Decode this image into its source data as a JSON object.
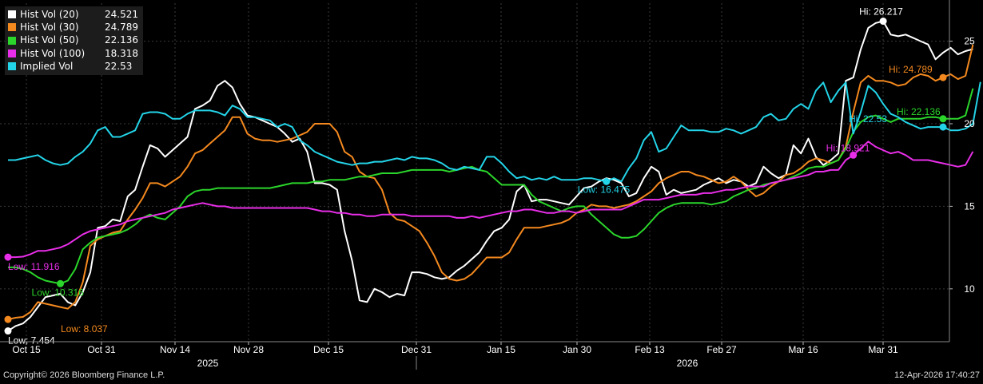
{
  "footer": {
    "copyright": "Copyright© 2026 Bloomberg Finance L.P.",
    "timestamp": "12-Apr-2026 17:40:27"
  },
  "chart_data": {
    "type": "line",
    "x_ticks": [
      "Oct 15",
      "Oct 31",
      "Nov 14",
      "Nov 28",
      "Dec 15",
      "Dec 31",
      "Jan 15",
      "Jan 30",
      "Feb 13",
      "Feb 27",
      "Mar 16",
      "Mar 31"
    ],
    "year_labels": [
      "2025",
      "2026"
    ],
    "y_ticks": [
      10,
      15,
      20,
      25
    ],
    "ylim": [
      6.8,
      27.3
    ],
    "n_points": 126,
    "grid": true,
    "legend_position": "top-left",
    "series": [
      {
        "name": "Hist Vol (20)",
        "last": "24.521",
        "color": "#ffffff",
        "values": [
          7.45,
          7.75,
          7.9,
          8.3,
          8.9,
          9.5,
          9.6,
          9.7,
          9.2,
          9.0,
          9.8,
          11.0,
          13.7,
          13.8,
          14.2,
          14.1,
          15.6,
          16.0,
          17.4,
          18.7,
          18.5,
          18.0,
          18.4,
          18.8,
          19.2,
          20.9,
          21.1,
          21.4,
          22.3,
          22.6,
          22.2,
          21.2,
          20.5,
          20.4,
          20.2,
          20.0,
          19.8,
          19.4,
          18.9,
          19.1,
          18.3,
          16.4,
          16.4,
          16.3,
          16.0,
          13.5,
          11.7,
          9.3,
          9.2,
          10.0,
          9.8,
          9.5,
          9.7,
          9.6,
          11.0,
          11.0,
          10.9,
          10.7,
          10.6,
          10.7,
          11.1,
          11.4,
          11.8,
          12.2,
          12.9,
          13.5,
          13.7,
          14.2,
          15.9,
          16.3,
          15.3,
          15.4,
          15.4,
          15.3,
          15.2,
          15.1,
          15.6,
          16.1,
          16.2,
          16.5,
          16.7,
          16.6,
          16.4,
          15.6,
          15.8,
          16.7,
          17.4,
          17.1,
          15.7,
          16.0,
          15.8,
          15.9,
          16.0,
          16.3,
          16.5,
          16.7,
          16.4,
          16.6,
          16.5,
          16.2,
          16.4,
          17.4,
          17.0,
          16.7,
          16.9,
          18.7,
          18.2,
          19.1,
          18.0,
          17.5,
          17.8,
          18.2,
          22.6,
          22.8,
          24.5,
          25.8,
          26.1,
          26.21,
          25.4,
          25.3,
          25.4,
          25.2,
          25.0,
          24.8,
          23.9,
          24.3,
          24.6,
          24.2,
          24.4,
          24.521
        ]
      },
      {
        "name": "Hist Vol (30)",
        "last": "24.789",
        "color": "#f4891f",
        "values": [
          8.15,
          8.25,
          8.3,
          8.6,
          9.2,
          9.1,
          9.0,
          8.9,
          8.8,
          9.2,
          10.4,
          12.6,
          13.0,
          13.2,
          13.4,
          13.5,
          14.2,
          14.8,
          15.5,
          16.4,
          16.4,
          16.2,
          16.5,
          16.8,
          17.4,
          18.2,
          18.4,
          18.8,
          19.2,
          19.6,
          20.4,
          20.4,
          19.4,
          19.1,
          19.0,
          19.0,
          18.9,
          19.0,
          19.1,
          19.3,
          19.5,
          20.0,
          20.0,
          20.0,
          19.5,
          18.3,
          18.0,
          17.1,
          16.8,
          16.7,
          16.0,
          14.6,
          14.2,
          14.1,
          13.8,
          13.5,
          12.8,
          12.0,
          11.0,
          10.6,
          10.5,
          10.6,
          10.9,
          11.4,
          11.9,
          11.9,
          11.9,
          12.2,
          13.0,
          13.7,
          13.7,
          13.7,
          13.8,
          13.9,
          14.0,
          14.2,
          14.6,
          14.8,
          15.1,
          15.0,
          15.0,
          14.9,
          15.0,
          15.1,
          15.3,
          15.6,
          15.9,
          16.4,
          16.7,
          16.9,
          17.1,
          17.1,
          16.9,
          16.8,
          16.6,
          16.4,
          16.5,
          16.8,
          16.5,
          16.0,
          15.6,
          15.8,
          16.2,
          16.5,
          16.9,
          17.0,
          17.3,
          17.7,
          17.9,
          17.8,
          17.6,
          17.8,
          18.6,
          20.7,
          22.5,
          22.9,
          22.6,
          22.6,
          22.5,
          22.3,
          22.4,
          22.8,
          23.0,
          22.9,
          22.6,
          22.8,
          23.0,
          22.7,
          22.9,
          24.789
        ]
      },
      {
        "name": "Hist Vol (50)",
        "last": "22.136",
        "color": "#2bd52b",
        "values": [
          11.3,
          11.3,
          11.2,
          11.0,
          10.7,
          10.5,
          10.4,
          10.316,
          10.5,
          11.2,
          12.4,
          12.8,
          13.1,
          13.2,
          13.3,
          13.4,
          13.6,
          13.9,
          14.3,
          14.5,
          14.3,
          14.2,
          14.6,
          15.0,
          15.6,
          15.9,
          16.0,
          16.0,
          16.1,
          16.1,
          16.1,
          16.1,
          16.1,
          16.1,
          16.1,
          16.1,
          16.2,
          16.3,
          16.4,
          16.4,
          16.4,
          16.5,
          16.5,
          16.6,
          16.6,
          16.6,
          16.7,
          16.8,
          16.8,
          16.9,
          17.0,
          17.0,
          17.0,
          17.1,
          17.2,
          17.2,
          17.2,
          17.2,
          17.2,
          17.1,
          17.2,
          17.3,
          17.4,
          17.2,
          17.1,
          16.7,
          16.3,
          16.3,
          16.3,
          16.3,
          15.7,
          15.3,
          15.1,
          14.9,
          14.7,
          14.9,
          15.0,
          15.0,
          14.5,
          14.1,
          13.7,
          13.3,
          13.1,
          13.1,
          13.2,
          13.6,
          14.1,
          14.6,
          14.9,
          15.1,
          15.2,
          15.2,
          15.2,
          15.2,
          15.1,
          15.2,
          15.3,
          15.6,
          15.8,
          16.0,
          16.1,
          16.3,
          16.4,
          16.5,
          16.6,
          16.8,
          17.0,
          17.3,
          17.4,
          17.4,
          17.6,
          17.8,
          18.5,
          19.5,
          20.1,
          20.4,
          20.5,
          20.3,
          20.1,
          20.3,
          20.3,
          20.3,
          20.3,
          20.4,
          20.4,
          20.3,
          20.3,
          20.3,
          20.5,
          22.136
        ]
      },
      {
        "name": "Hist Vol (100)",
        "last": "18.318",
        "color": "#e82ee8",
        "values": [
          11.92,
          11.92,
          11.95,
          12.1,
          12.3,
          12.3,
          12.4,
          12.5,
          12.7,
          13.0,
          13.3,
          13.5,
          13.6,
          13.7,
          13.8,
          13.9,
          14.1,
          14.2,
          14.3,
          14.4,
          14.5,
          14.6,
          14.8,
          14.9,
          15.0,
          15.1,
          15.2,
          15.1,
          15.0,
          15.0,
          14.9,
          14.9,
          14.9,
          14.9,
          14.9,
          14.9,
          14.9,
          14.9,
          14.9,
          14.9,
          14.9,
          14.8,
          14.7,
          14.7,
          14.6,
          14.6,
          14.5,
          14.5,
          14.4,
          14.4,
          14.5,
          14.5,
          14.5,
          14.5,
          14.4,
          14.4,
          14.4,
          14.4,
          14.4,
          14.4,
          14.3,
          14.3,
          14.4,
          14.3,
          14.4,
          14.5,
          14.6,
          14.7,
          14.7,
          14.8,
          14.8,
          14.7,
          14.6,
          14.6,
          14.7,
          14.7,
          14.6,
          14.7,
          14.8,
          14.8,
          14.8,
          14.8,
          14.8,
          15.0,
          15.2,
          15.4,
          15.4,
          15.4,
          15.5,
          15.6,
          15.7,
          15.7,
          15.7,
          15.8,
          15.8,
          15.9,
          16.0,
          16.0,
          16.1,
          16.2,
          16.2,
          16.2,
          16.4,
          16.5,
          16.6,
          16.7,
          16.8,
          16.9,
          17.1,
          17.1,
          17.2,
          17.2,
          17.8,
          18.1,
          18.5,
          18.921,
          18.6,
          18.4,
          18.2,
          18.3,
          18.1,
          17.8,
          17.8,
          17.8,
          17.7,
          17.6,
          17.5,
          17.4,
          17.5,
          18.318
        ]
      },
      {
        "name": "Implied Vol",
        "last": "22.53",
        "color": "#23d4e8",
        "values": [
          17.8,
          17.8,
          17.9,
          18.0,
          18.1,
          17.8,
          17.6,
          17.5,
          17.6,
          18.0,
          18.3,
          18.8,
          19.6,
          19.8,
          19.2,
          19.2,
          19.4,
          19.6,
          20.6,
          20.7,
          20.7,
          20.6,
          20.3,
          20.3,
          20.6,
          20.8,
          20.8,
          20.8,
          20.7,
          20.5,
          21.1,
          20.9,
          20.4,
          20.4,
          20.3,
          20.2,
          19.8,
          20.0,
          19.8,
          19.0,
          18.7,
          18.3,
          18.1,
          17.9,
          17.7,
          17.6,
          17.5,
          17.6,
          17.6,
          17.7,
          17.7,
          17.8,
          17.9,
          17.8,
          18.0,
          17.9,
          17.9,
          17.8,
          17.6,
          17.3,
          17.2,
          17.4,
          17.3,
          17.2,
          18.0,
          18.0,
          17.6,
          17.1,
          16.7,
          16.8,
          16.6,
          16.7,
          16.6,
          16.8,
          16.6,
          16.6,
          16.6,
          16.7,
          16.7,
          16.6,
          16.5,
          16.7,
          16.5,
          17.3,
          17.9,
          19.0,
          19.5,
          18.3,
          18.5,
          19.2,
          19.9,
          19.6,
          19.6,
          19.6,
          19.5,
          19.5,
          19.7,
          19.6,
          19.4,
          19.6,
          19.8,
          20.4,
          20.6,
          20.2,
          20.3,
          20.9,
          21.2,
          20.9,
          22.0,
          22.5,
          21.3,
          22.0,
          22.5,
          19.4,
          20.7,
          22.3,
          21.9,
          21.2,
          20.6,
          20.4,
          20.1,
          19.9,
          19.7,
          19.8,
          19.8,
          19.8,
          19.6,
          19.6,
          19.7,
          20.0,
          22.53
        ]
      }
    ],
    "annotations": [
      {
        "label": "Hi: 26.217",
        "series": 0,
        "index": 117
      },
      {
        "label": "Low: 7.454",
        "series": 0,
        "index": 0
      },
      {
        "label": "Hi: 24.789",
        "series": 1,
        "index": 125
      },
      {
        "label": "Low: 8.037",
        "series": 1,
        "index": 0
      },
      {
        "label": "Hi: 22.136",
        "series": 2,
        "index": 125
      },
      {
        "label": "Low: 10.316",
        "series": 2,
        "index": 7
      },
      {
        "label": "Hi: 18.921",
        "series": 3,
        "index": 113
      },
      {
        "label": "Low: 11.916",
        "series": 3,
        "index": 0
      },
      {
        "label": "Hi: 22.53",
        "series": 4,
        "index": 125
      },
      {
        "label": "Low: 16.475",
        "series": 4,
        "index": 80
      }
    ]
  }
}
